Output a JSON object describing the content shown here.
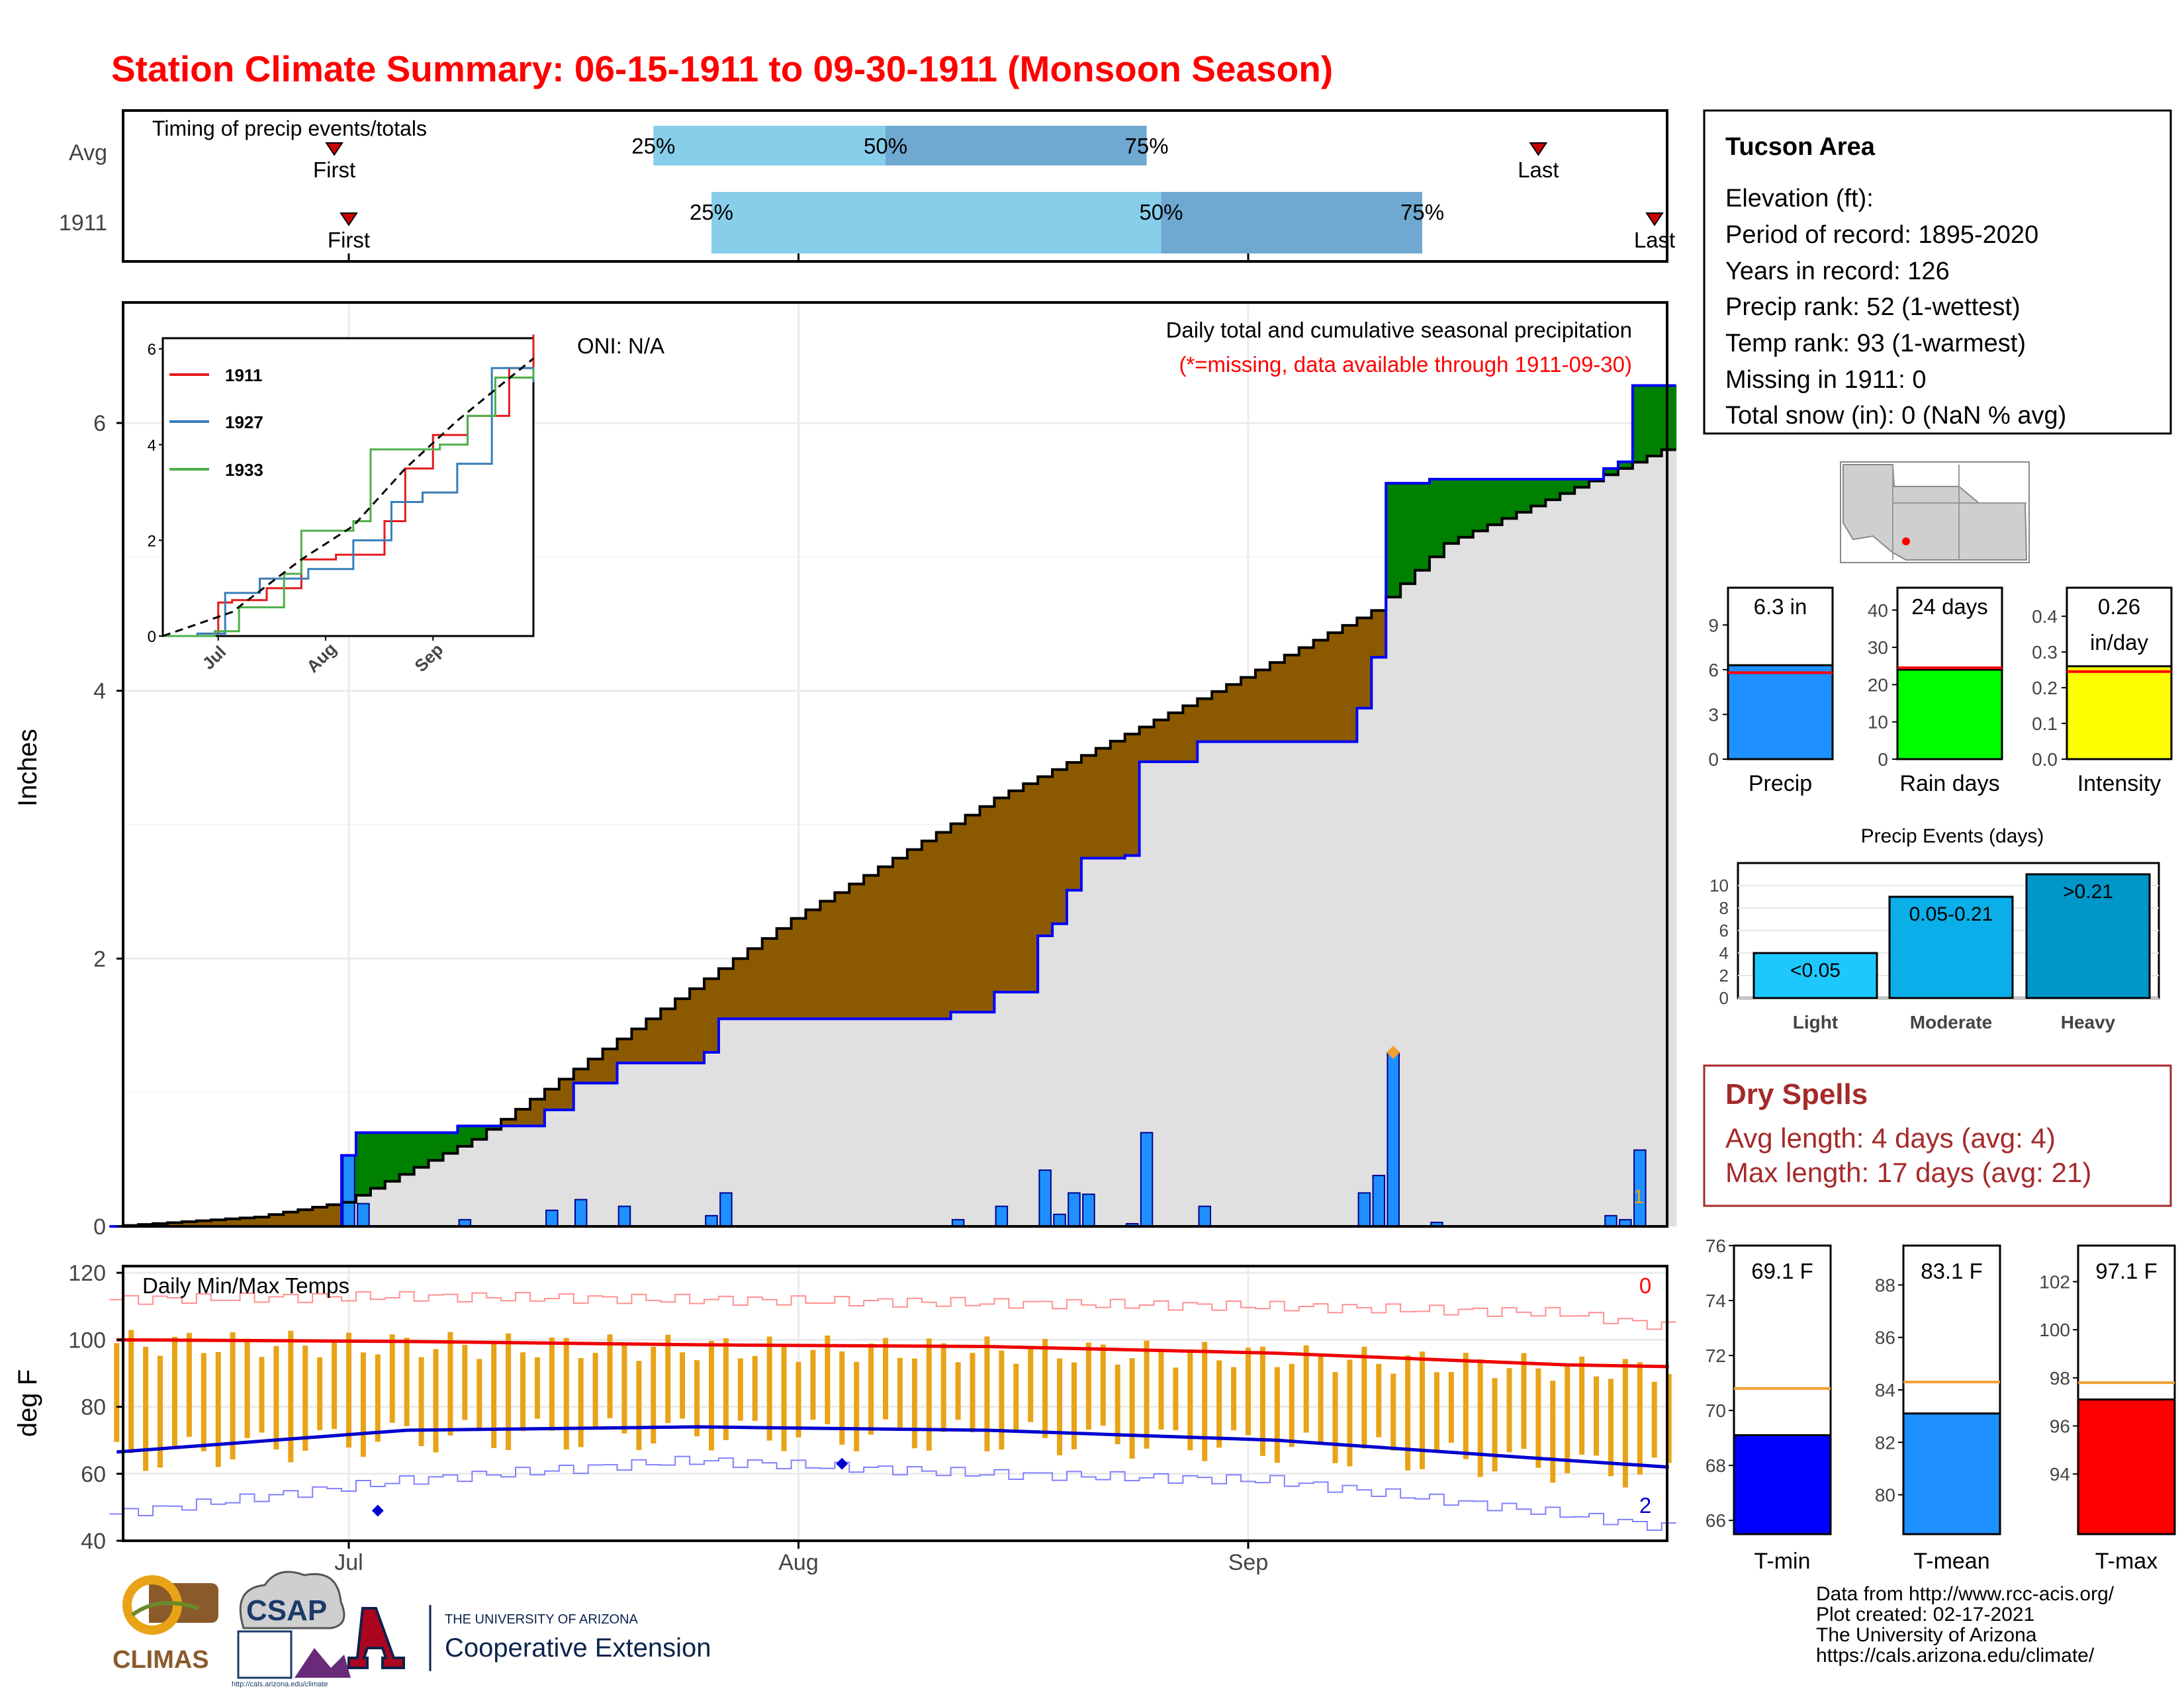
{
  "title": "Station Climate Summary: 06-15-1911 to 09-30-1911 (Monsoon Season)",
  "colors": {
    "title": "#ff0000",
    "light_blue": "#87ceeb",
    "mid_blue": "#6fa8d0",
    "bar_blue": "#1e90ff",
    "green": "#008000",
    "brown": "#8b5a00",
    "grey_fill": "#e0e0e0",
    "orange": "#e8a317",
    "red": "#ff0000",
    "blue": "#0000cd",
    "dry_red": "#a52a2a"
  },
  "timing": {
    "heading": "Timing of precip events/totals",
    "rows": [
      {
        "label": "Avg",
        "first_date": "1911-06-30",
        "last_date": "1911-09-21",
        "q25": "1911-07-22",
        "q50": "1911-08-07",
        "q75": "1911-08-25",
        "first_label": "First",
        "last_label": "Last",
        "p25": "25%",
        "p50": "50%",
        "p75": "75%"
      },
      {
        "label": "1911",
        "first_date": "1911-07-01",
        "last_date": "1911-09-30",
        "q25": "1911-07-26",
        "q50": "1911-08-26",
        "q75": "1911-09-13",
        "first_label": "First",
        "last_label": "Last",
        "p25": "25%",
        "p50": "50%",
        "p75": "75%"
      }
    ]
  },
  "precip_panel": {
    "ylabel": "Inches",
    "oni": "ONI: N/A",
    "caption": "Daily total and cumulative seasonal precipitation",
    "missing_note": "(*=missing, data available through 1911-09-30)",
    "y_ticks": [
      "0",
      "2",
      "4",
      "6"
    ],
    "count_label": "1"
  },
  "inset": {
    "legend": [
      "1911",
      "1927",
      "1933"
    ],
    "y_ticks": [
      "0",
      "2",
      "4",
      "6"
    ],
    "x_ticks": [
      "Jul",
      "Aug",
      "Sep"
    ]
  },
  "temp_panel": {
    "ylabel": "deg F",
    "heading": "Daily Min/Max Temps",
    "y_ticks": [
      "40",
      "60",
      "80",
      "100",
      "120"
    ],
    "max_count": "0",
    "min_count": "2"
  },
  "x_ticks": [
    "Jul",
    "Aug",
    "Sep"
  ],
  "info": {
    "area": "Tucson Area",
    "lines": [
      "Elevation (ft):",
      "Period of record: 1895-2020",
      "Years in record: 126",
      "Precip rank: 52 (1-wettest)",
      "Temp rank: 93 (1-warmest)",
      "Missing in 1911: 0",
      "Total snow (in): 0 (NaN % avg)"
    ]
  },
  "summary_bars": [
    {
      "name": "Precip",
      "label": "6.3 in",
      "value": 6.3,
      "avg": 5.8,
      "max": 11.5,
      "ticks": [
        "0",
        "3",
        "6",
        "9"
      ],
      "tickvals": [
        0,
        3,
        6,
        9
      ],
      "color": "#1e90ff"
    },
    {
      "name": "Rain days",
      "label": "24 days",
      "value": 24,
      "avg": 24.5,
      "max": 46,
      "ticks": [
        "0",
        "10",
        "20",
        "30",
        "40"
      ],
      "tickvals": [
        0,
        10,
        20,
        30,
        40
      ],
      "color": "#00ff00"
    },
    {
      "name": "Intensity",
      "label": "0.26",
      "label2": "in/day",
      "value": 0.26,
      "avg": 0.245,
      "max": 0.48,
      "ticks": [
        "0.0",
        "0.1",
        "0.2",
        "0.3",
        "0.4"
      ],
      "tickvals": [
        0,
        0.1,
        0.2,
        0.3,
        0.4
      ],
      "color": "#ffff00"
    }
  ],
  "events": {
    "title": "Precip Events (days)",
    "ticks": [
      "0",
      "2",
      "4",
      "6",
      "8",
      "10"
    ],
    "bars": [
      {
        "name": "Light",
        "label": "<0.05",
        "value": 4,
        "color": "#1ec8ff"
      },
      {
        "name": "Moderate",
        "label": "0.05-0.21",
        "value": 9,
        "color": "#0aaee8"
      },
      {
        "name": "Heavy",
        "label": ">0.21",
        "value": 11,
        "color": "#0096c8"
      }
    ]
  },
  "dry_spells": {
    "title": "Dry Spells",
    "avg": "Avg length: 4 days (avg: 4)",
    "max": "Max length: 17 days (avg: 21)"
  },
  "temp_bars": [
    {
      "name": "T-min",
      "label": "69.1 F",
      "value": 69.1,
      "avg": 70.8,
      "lo": 65.5,
      "hi": 76,
      "ticks": [
        "66",
        "68",
        "70",
        "72",
        "74",
        "76"
      ],
      "tickvals": [
        66,
        68,
        70,
        72,
        74,
        76
      ],
      "color": "#0000ff"
    },
    {
      "name": "T-mean",
      "label": "83.1 F",
      "value": 83.1,
      "avg": 84.3,
      "lo": 78.5,
      "hi": 89.5,
      "ticks": [
        "80",
        "82",
        "84",
        "86",
        "88"
      ],
      "tickvals": [
        80,
        82,
        84,
        86,
        88
      ],
      "color": "#1e90ff"
    },
    {
      "name": "T-max",
      "label": "97.1 F",
      "value": 97.1,
      "avg": 97.8,
      "lo": 91.5,
      "hi": 103.5,
      "ticks": [
        "94",
        "96",
        "98",
        "100",
        "102"
      ],
      "tickvals": [
        94,
        96,
        98,
        100,
        102
      ],
      "color": "#ff0000"
    }
  ],
  "footer": {
    "lines": [
      "Data from http://www.rcc-acis.org/",
      "Plot created: 02-17-2021",
      "The University of Arizona",
      "https://cals.arizona.edu/climate/"
    ],
    "logo1": "CLIMAS",
    "logo2": "CSAP",
    "logo2_url": "http://cals.arizona.edu/climate",
    "logo3_top": "THE UNIVERSITY OF ARIZONA",
    "logo3_bottom": "Cooperative Extension"
  },
  "chart_data": [
    {
      "type": "bar",
      "title": "Daily total and cumulative seasonal precipitation",
      "ylabel": "Inches",
      "ylim": [
        0,
        6.9
      ],
      "x_range": [
        "1911-06-15",
        "1911-09-30"
      ],
      "daily_precip": [
        {
          "date": "1911-07-01",
          "value": 0.53
        },
        {
          "date": "1911-07-02",
          "value": 0.17
        },
        {
          "date": "1911-07-09",
          "value": 0.05
        },
        {
          "date": "1911-07-15",
          "value": 0.12
        },
        {
          "date": "1911-07-17",
          "value": 0.2
        },
        {
          "date": "1911-07-20",
          "value": 0.15
        },
        {
          "date": "1911-07-26",
          "value": 0.08
        },
        {
          "date": "1911-07-27",
          "value": 0.25
        },
        {
          "date": "1911-08-12",
          "value": 0.05
        },
        {
          "date": "1911-08-15",
          "value": 0.15
        },
        {
          "date": "1911-08-18",
          "value": 0.42
        },
        {
          "date": "1911-08-19",
          "value": 0.09
        },
        {
          "date": "1911-08-20",
          "value": 0.25
        },
        {
          "date": "1911-08-21",
          "value": 0.24
        },
        {
          "date": "1911-08-24",
          "value": 0.02
        },
        {
          "date": "1911-08-25",
          "value": 0.7
        },
        {
          "date": "1911-08-29",
          "value": 0.15
        },
        {
          "date": "1911-09-09",
          "value": 0.25
        },
        {
          "date": "1911-09-10",
          "value": 0.38
        },
        {
          "date": "1911-09-11",
          "value": 1.3
        },
        {
          "date": "1911-09-14",
          "value": 0.03
        },
        {
          "date": "1911-09-26",
          "value": 0.08
        },
        {
          "date": "1911-09-27",
          "value": 0.05
        },
        {
          "date": "1911-09-28",
          "value": 0.57
        }
      ],
      "avg_cumulative": [
        {
          "date": "1911-06-15",
          "value": 0.0
        },
        {
          "date": "1911-06-25",
          "value": 0.07
        },
        {
          "date": "1911-07-01",
          "value": 0.18
        },
        {
          "date": "1911-07-10",
          "value": 0.65
        },
        {
          "date": "1911-07-20",
          "value": 1.4
        },
        {
          "date": "1911-08-01",
          "value": 2.3
        },
        {
          "date": "1911-08-15",
          "value": 3.2
        },
        {
          "date": "1911-09-01",
          "value": 4.1
        },
        {
          "date": "1911-09-10",
          "value": 4.6
        },
        {
          "date": "1911-09-15",
          "value": 5.1
        },
        {
          "date": "1911-09-30",
          "value": 5.8
        }
      ],
      "orange_marker": {
        "date": "1911-09-11",
        "value": 1.3
      }
    },
    {
      "type": "line",
      "title": "Daily Min/Max Temps",
      "ylabel": "deg F",
      "ylim": [
        40,
        122
      ],
      "series": [
        {
          "name": "",
          "values": "record max",
          "points": [
            [
              0,
              112
            ],
            [
              20,
              113
            ],
            [
              40,
              112
            ],
            [
              60,
              111
            ],
            [
              80,
              110
            ],
            [
              100,
              108
            ],
            [
              107,
              104
            ]
          ]
        },
        {
          "name": "",
          "values": "avg max",
          "points": [
            [
              0,
              100
            ],
            [
              20,
              99.5
            ],
            [
              40,
              98.5
            ],
            [
              60,
              98
            ],
            [
              80,
              96
            ],
            [
              100,
              92.5
            ],
            [
              107,
              92
            ]
          ]
        },
        {
          "name": "",
          "values": "avg min",
          "points": [
            [
              0,
              66.5
            ],
            [
              20,
              73
            ],
            [
              40,
              74
            ],
            [
              60,
              73
            ],
            [
              80,
              70
            ],
            [
              100,
              64
            ],
            [
              107,
              62
            ]
          ]
        },
        {
          "name": "",
          "values": "record min",
          "points": [
            [
              0,
              48
            ],
            [
              20,
              58
            ],
            [
              40,
              64
            ],
            [
              60,
              60
            ],
            [
              80,
              58
            ],
            [
              100,
              48
            ],
            [
              107,
              44
            ]
          ]
        }
      ],
      "extremes": [
        {
          "day": 18,
          "value": 49
        },
        {
          "day": 50,
          "value": 63
        }
      ]
    },
    {
      "type": "line",
      "title": "",
      "ylim": [
        0,
        6.5
      ],
      "xlabel": "",
      "series": [
        {
          "name": "1911",
          "points": [
            [
              0,
              0
            ],
            [
              10,
              0.05
            ],
            [
              16,
              0.7
            ],
            [
              20,
              0.75
            ],
            [
              30,
              1.0
            ],
            [
              40,
              1.6
            ],
            [
              50,
              1.7
            ],
            [
              64,
              2.4
            ],
            [
              70,
              3.5
            ],
            [
              78,
              4.2
            ],
            [
              88,
              4.6
            ],
            [
              100,
              5.6
            ],
            [
              107,
              6.3
            ]
          ]
        },
        {
          "name": "1927",
          "points": [
            [
              0,
              0
            ],
            [
              10,
              0.05
            ],
            [
              18,
              0.9
            ],
            [
              28,
              1.2
            ],
            [
              42,
              1.4
            ],
            [
              55,
              2.0
            ],
            [
              66,
              2.8
            ],
            [
              75,
              3.0
            ],
            [
              85,
              3.6
            ],
            [
              95,
              5.6
            ],
            [
              107,
              5.3
            ]
          ]
        },
        {
          "name": "1933",
          "points": [
            [
              0,
              0
            ],
            [
              15,
              0.1
            ],
            [
              22,
              0.6
            ],
            [
              35,
              1.3
            ],
            [
              40,
              2.2
            ],
            [
              55,
              2.4
            ],
            [
              60,
              3.9
            ],
            [
              80,
              4.0
            ],
            [
              88,
              4.6
            ],
            [
              96,
              5.4
            ],
            [
              107,
              5.6
            ]
          ]
        },
        {
          "name": "",
          "points": [
            [
              0,
              0
            ],
            [
              20,
              0.5
            ],
            [
              40,
              1.6
            ],
            [
              55,
              2.3
            ],
            [
              70,
              3.5
            ],
            [
              85,
              4.5
            ],
            [
              107,
              5.8
            ]
          ]
        }
      ]
    }
  ]
}
